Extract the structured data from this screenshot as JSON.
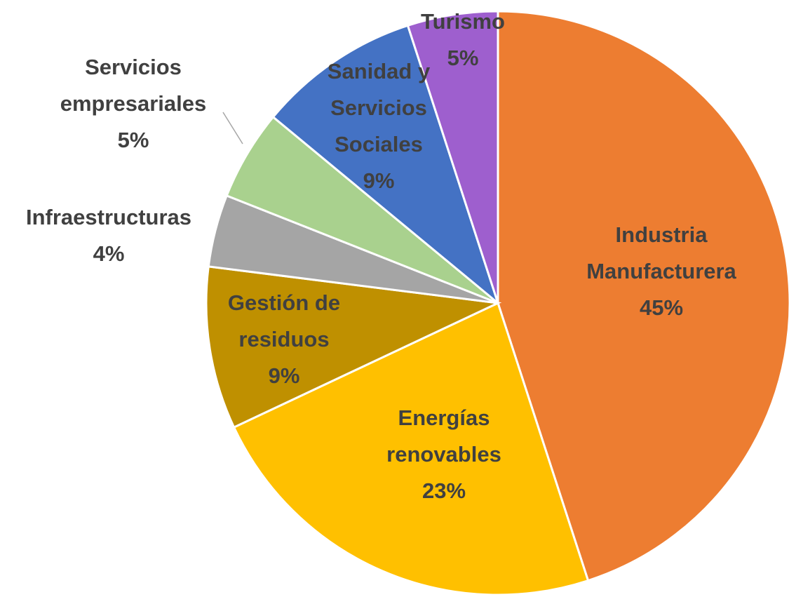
{
  "chart_data": {
    "type": "pie",
    "categories": [
      "Industria Manufacturera",
      "Energías renovables",
      "Gestión de residuos",
      "Infraestructuras",
      "Servicios empresariales",
      "Sanidad y Servicios Sociales",
      "Turismo"
    ],
    "values": [
      45,
      23,
      9,
      4,
      5,
      9,
      5
    ],
    "value_labels": [
      "45%",
      "23%",
      "9%",
      "4%",
      "5%",
      "9%",
      "5%"
    ],
    "colors": [
      "#ed7d31",
      "#ffc000",
      "#bf9000",
      "#a5a5a5",
      "#a9d18e",
      "#4472c4",
      "#9e5fce"
    ]
  }
}
